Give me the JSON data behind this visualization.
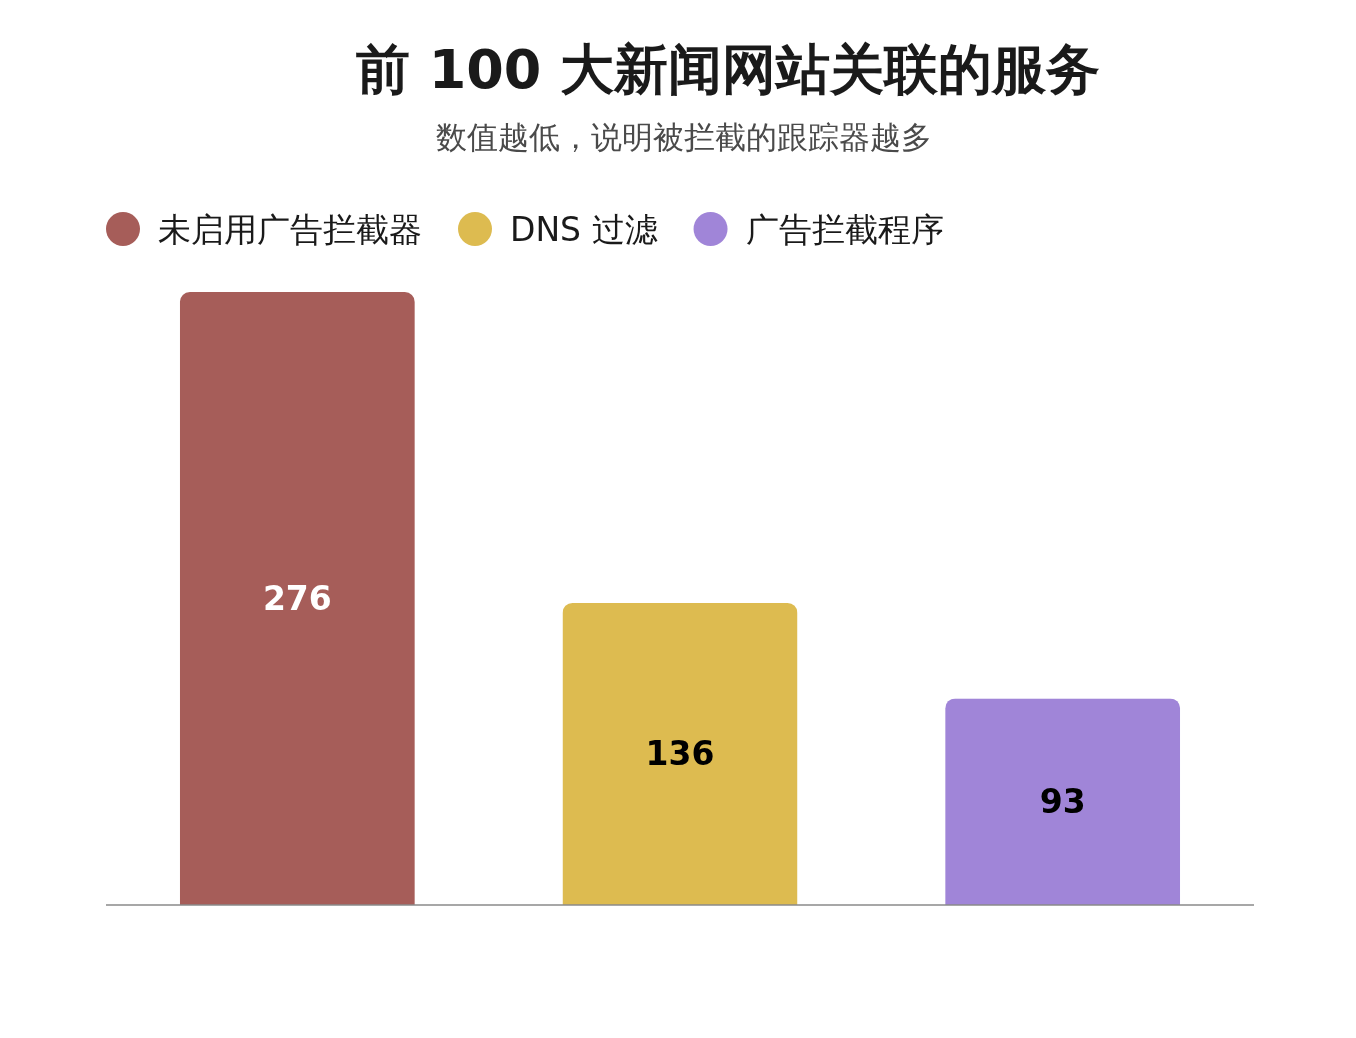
{
  "chart_data": {
    "type": "bar",
    "title": "前 100 大新闻网站关联的服务",
    "subtitle": "数值越低，说明被拦截的跟踪器越多",
    "categories": [
      null,
      null,
      null
    ],
    "stacked": true,
    "series": [
      {
        "name": "未启用广告拦截器",
        "color": "#a65d59",
        "values": [
          276,
          null,
          null
        ]
      },
      {
        "name": "DNS 过滤",
        "color": "#ddbb50",
        "values": [
          null,
          136,
          null
        ]
      },
      {
        "name": "广告拦截程序",
        "color": "#a085d8",
        "values": [
          null,
          null,
          93
        ]
      }
    ],
    "data_labels": true,
    "legend": "top left"
  }
}
